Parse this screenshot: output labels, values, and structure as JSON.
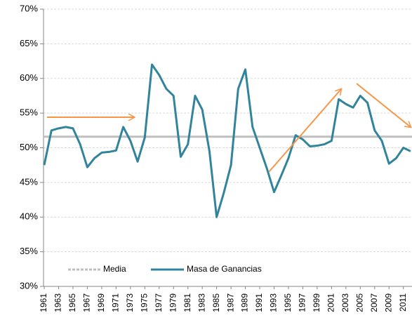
{
  "chart_data": {
    "type": "line",
    "x": [
      1961,
      1962,
      1963,
      1964,
      1965,
      1966,
      1967,
      1968,
      1969,
      1970,
      1971,
      1972,
      1973,
      1974,
      1975,
      1976,
      1977,
      1978,
      1979,
      1980,
      1981,
      1982,
      1983,
      1984,
      1985,
      1986,
      1987,
      1988,
      1989,
      1990,
      1991,
      1992,
      1993,
      1994,
      1995,
      1996,
      1997,
      1998,
      1999,
      2000,
      2001,
      2002,
      2003,
      2004,
      2005,
      2006,
      2007,
      2008,
      2009,
      2010,
      2011,
      2012
    ],
    "series": [
      {
        "name": "Masa de Ganancias",
        "color": "#31849b",
        "values": [
          47.5,
          52.5,
          52.8,
          53.0,
          52.8,
          50.5,
          47.2,
          48.5,
          49.3,
          49.4,
          49.6,
          53.0,
          51.0,
          48.0,
          51.5,
          62.0,
          60.5,
          58.5,
          57.5,
          48.7,
          50.5,
          57.5,
          55.5,
          49.5,
          40.0,
          43.5,
          47.5,
          58.5,
          61.3,
          53.0,
          50.0,
          47.0,
          43.6,
          46.0,
          48.5,
          51.8,
          51.2,
          50.2,
          50.3,
          50.5,
          51.0,
          57.0,
          56.3,
          55.8,
          57.5,
          56.5,
          52.5,
          51.0,
          47.7,
          48.5,
          50.0,
          49.5
        ]
      }
    ],
    "mean_line": {
      "name": "Media",
      "value": 51.6,
      "color": "#bfbfbf"
    },
    "xlim": [
      1960.9,
      2012.2
    ],
    "xticks": [
      1961,
      1963,
      1965,
      1967,
      1969,
      1971,
      1973,
      1975,
      1977,
      1979,
      1981,
      1983,
      1985,
      1987,
      1989,
      1991,
      1993,
      1995,
      1997,
      1999,
      2001,
      2003,
      2005,
      2007,
      2009,
      2011
    ],
    "ylim": [
      30,
      70
    ],
    "yticks": [
      {
        "value": 30,
        "label": "30%"
      },
      {
        "value": 35,
        "label": "35%"
      },
      {
        "value": 40,
        "label": "40%"
      },
      {
        "value": 45,
        "label": "45%"
      },
      {
        "value": 50,
        "label": "50%"
      },
      {
        "value": 55,
        "label": "55%"
      },
      {
        "value": 60,
        "label": "60%"
      },
      {
        "value": 65,
        "label": "65%"
      },
      {
        "value": 70,
        "label": "70%"
      }
    ],
    "grid": true
  }
}
